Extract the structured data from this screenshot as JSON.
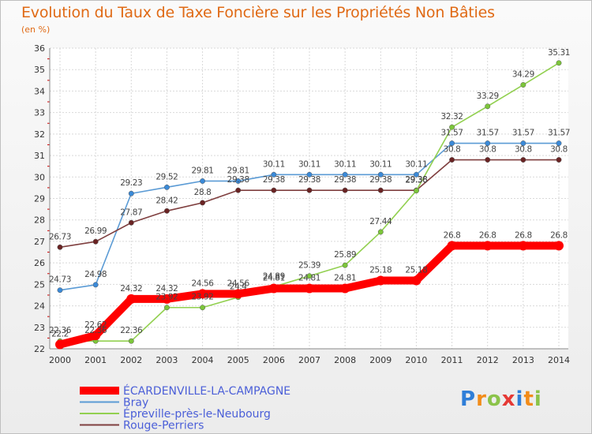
{
  "title": "Evolution du Taux de Taxe Foncière sur les Propriétés Non Bâties",
  "unit_label": "(en %)",
  "logo_text": "Proxiti",
  "chart_data": {
    "type": "line",
    "title": "Evolution du Taux de Taxe Foncière sur les Propriétés Non Bâties",
    "ylabel": "(en %)",
    "xlabel": "",
    "x": [
      "2000",
      "2001",
      "2002",
      "2003",
      "2004",
      "2005",
      "2006",
      "2007",
      "2008",
      "2009",
      "2010",
      "2011",
      "2012",
      "2013",
      "2014"
    ],
    "ylim": [
      22,
      36
    ],
    "yticks": [
      "22",
      "23",
      "24",
      "25",
      "26",
      "27",
      "28",
      "29",
      "30",
      "31",
      "32",
      "33",
      "34",
      "35",
      "36"
    ],
    "grid": true,
    "legend_position": "bottom-left",
    "series": [
      {
        "name": "ÉCARDENVILLE-LA-CAMPAGNE",
        "color": "#ff0000",
        "values": [
          22.2,
          22.62,
          24.32,
          24.32,
          24.56,
          24.56,
          24.81,
          24.81,
          24.81,
          25.18,
          25.18,
          26.8,
          26.8,
          26.8,
          26.8
        ],
        "labels": [
          "22.2",
          "22.62",
          "24.32",
          "24.32",
          "24.56",
          "24.56",
          "24.81",
          "24.81",
          "24.81",
          "25.18",
          "25.18",
          "26.8",
          "26.8",
          "26.8",
          "26.8"
        ]
      },
      {
        "name": "Bray",
        "color": "#5b9bd5",
        "values": [
          24.73,
          24.98,
          29.23,
          29.52,
          29.81,
          29.81,
          30.11,
          30.11,
          30.11,
          30.11,
          30.11,
          31.57,
          31.57,
          31.57,
          31.57
        ],
        "labels": [
          "24.73",
          "24.98",
          "29.23",
          "29.52",
          "29.81",
          "29.81",
          "30.11",
          "30.11",
          "30.11",
          "30.11",
          "30.11",
          "31.57",
          "31.57",
          "31.57",
          "31.57"
        ]
      },
      {
        "name": "Épreville-près-le-Neubourg",
        "color": "#92d050",
        "values": [
          22.36,
          22.36,
          22.36,
          23.92,
          23.92,
          24.4,
          24.89,
          25.39,
          25.89,
          27.44,
          29.36,
          32.32,
          33.29,
          34.29,
          35.31
        ],
        "labels": [
          "22.36",
          "22.36",
          "22.36",
          "23.92",
          "23.92",
          "24.4",
          "24.89",
          "25.39",
          "25.89",
          "27.44",
          "29.36",
          "32.32",
          "33.29",
          "34.29",
          "35.31"
        ]
      },
      {
        "name": "Rouge-Perriers",
        "color": "#7f3f3f",
        "values": [
          26.73,
          26.99,
          27.87,
          28.42,
          28.8,
          29.38,
          29.38,
          29.38,
          29.38,
          29.38,
          29.38,
          30.8,
          30.8,
          30.8,
          30.8
        ],
        "labels": [
          "26.73",
          "26.99",
          "27.87",
          "28.42",
          "28.8",
          "29.38",
          "29.38",
          "29.38",
          "29.38",
          "29.38",
          "29.38",
          "30.8",
          "30.8",
          "30.8",
          "30.8"
        ]
      }
    ]
  }
}
